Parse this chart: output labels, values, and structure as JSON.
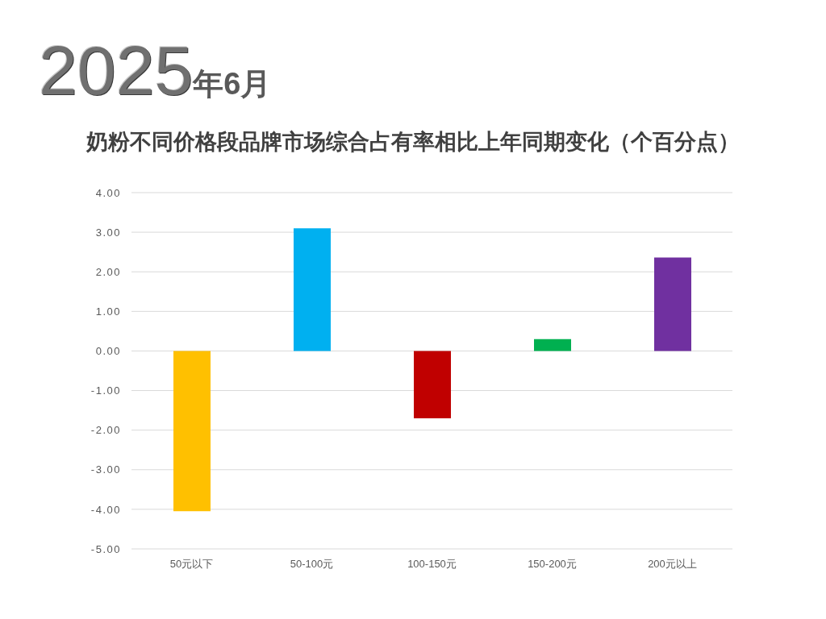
{
  "chart_data": {
    "type": "bar",
    "title": "2025年6月",
    "subtitle": "奶粉不同价格段品牌市场综合占有率相比上年同期变化（个百分点）",
    "categories": [
      "50元以下",
      "50-100元",
      "100-150元",
      "150-200元",
      "200元以上"
    ],
    "values": [
      -4.05,
      3.1,
      -1.7,
      0.3,
      2.36
    ],
    "colors": [
      "#ffc000",
      "#00b0f0",
      "#c00000",
      "#00b050",
      "#7030a0"
    ],
    "ylim": [
      -5,
      4
    ],
    "yticks": [
      {
        "value": -5,
        "label": "-5.00"
      },
      {
        "value": -4,
        "label": "-4.00"
      },
      {
        "value": -3,
        "label": "-3.00"
      },
      {
        "value": -2,
        "label": "-2.00"
      },
      {
        "value": -1,
        "label": "-1.00"
      },
      {
        "value": 0,
        "label": "0.00"
      },
      {
        "value": 1,
        "label": "1.00"
      },
      {
        "value": 2,
        "label": "2.00"
      },
      {
        "value": 3,
        "label": "3.00"
      },
      {
        "value": 4,
        "label": "4.00"
      }
    ],
    "grid": "y"
  }
}
